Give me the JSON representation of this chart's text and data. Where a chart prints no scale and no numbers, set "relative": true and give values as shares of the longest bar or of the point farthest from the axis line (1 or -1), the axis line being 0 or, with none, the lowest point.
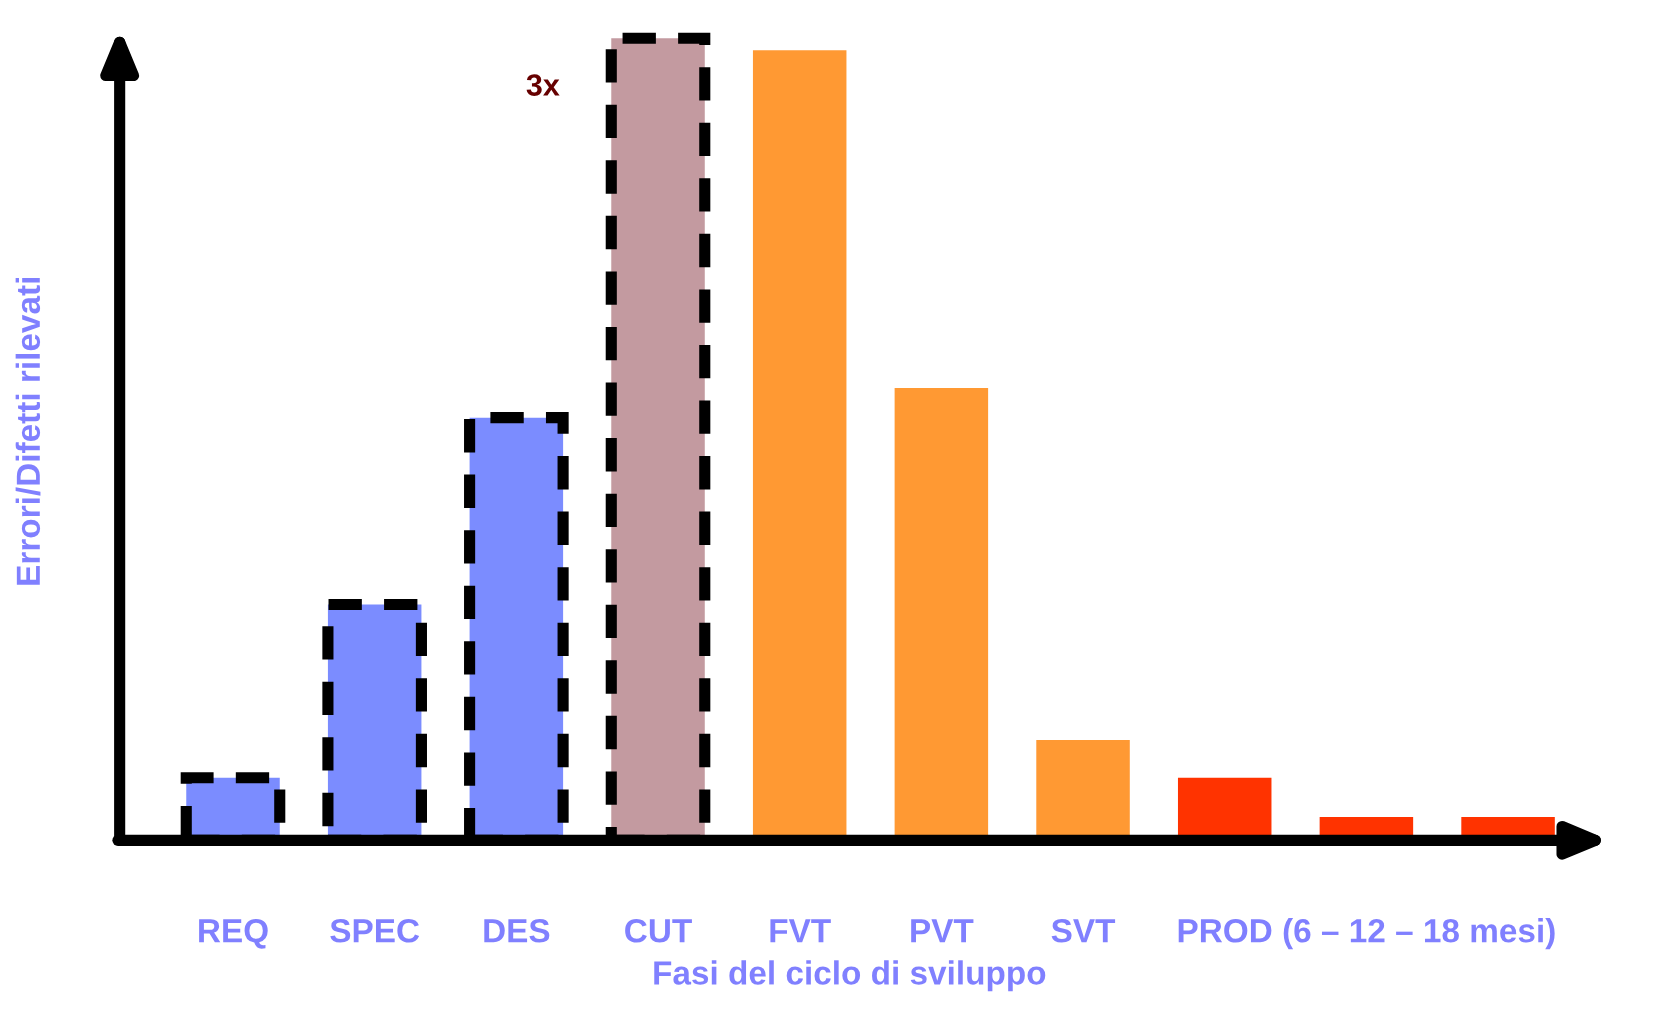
{
  "chart_data": {
    "type": "bar",
    "relative": true,
    "xlabel": "Fasi del ciclo di sviluppo",
    "ylabel": "Errori/Difetti rilevati",
    "categories": [
      "REQ",
      "SPEC",
      "DES",
      "CUT",
      "FVT",
      "PVT",
      "SVT",
      null,
      "PROD (6 – 12 – 18 mesi)",
      null
    ],
    "series": [
      {
        "colors": [
          "#7b8cff",
          "#7b8cff",
          "#7b8cff",
          "#c39aa0",
          null,
          null,
          null,
          null,
          null,
          null
        ],
        "line_style": "dashed",
        "values": [
          0.078,
          0.294,
          0.527,
          1,
          null,
          null,
          null,
          null,
          null,
          null
        ]
      },
      {
        "colors": [
          null,
          null,
          null,
          null,
          "#ff9933",
          "#ff9933",
          "#ff9933",
          "#ff3300",
          "#ff3300",
          "#ff3300"
        ],
        "line_style": "solid",
        "values": [
          null,
          null,
          null,
          null,
          0.985,
          0.564,
          0.125,
          0.078,
          0.029,
          0.029
        ]
      }
    ],
    "annotations": [
      "3x"
    ],
    "grid": false,
    "legend": false
  }
}
